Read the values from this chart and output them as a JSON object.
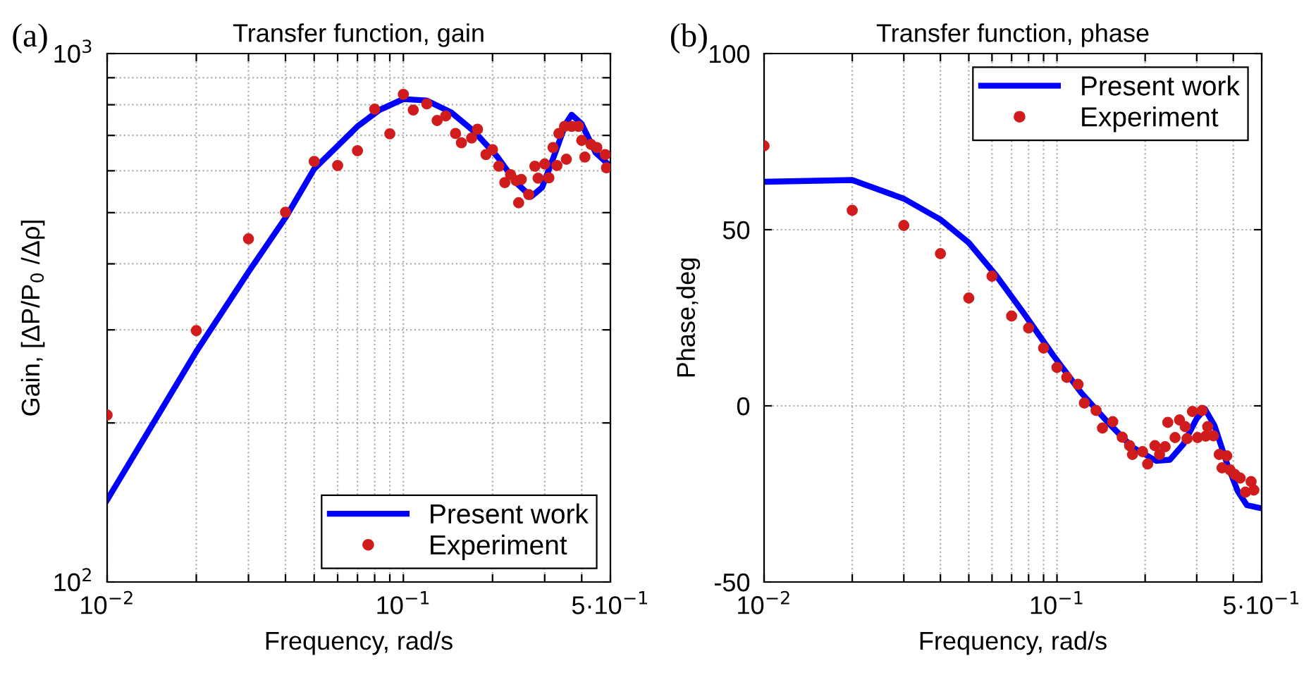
{
  "chart_data": [
    {
      "type": "line",
      "title": "Transfer function, gain",
      "xlabel": "Frequency, rad/s",
      "ylabel": "Gain, [ΔP/P$_{0}$ /Δρ]",
      "annotations": [
        "(a)"
      ],
      "log": "xy",
      "grid": true,
      "legend": "bottom right",
      "xlim": [
        0.01,
        0.5
      ],
      "ylim": [
        100,
        1000
      ],
      "xticks": [
        {
          "value": 0.01,
          "label": "10$^{−2}$"
        },
        {
          "value": 0.02,
          "label": null
        },
        {
          "value": 0.03,
          "label": null
        },
        {
          "value": 0.04,
          "label": null
        },
        {
          "value": 0.05,
          "label": null
        },
        {
          "value": 0.06,
          "label": null
        },
        {
          "value": 0.07,
          "label": null
        },
        {
          "value": 0.08,
          "label": null
        },
        {
          "value": 0.09,
          "label": null
        },
        {
          "value": 0.1,
          "label": "10$^{−1}$"
        },
        {
          "value": 0.2,
          "label": null
        },
        {
          "value": 0.3,
          "label": null
        },
        {
          "value": 0.4,
          "label": null
        },
        {
          "value": 0.5,
          "label": "5·10$^{−1}$"
        }
      ],
      "yticks": [
        {
          "value": 100,
          "label": "10$^{2}$"
        },
        {
          "value": 200,
          "label": null
        },
        {
          "value": 300,
          "label": null
        },
        {
          "value": 400,
          "label": null
        },
        {
          "value": 500,
          "label": null
        },
        {
          "value": 600,
          "label": null
        },
        {
          "value": 700,
          "label": null
        },
        {
          "value": 800,
          "label": null
        },
        {
          "value": 900,
          "label": null
        },
        {
          "value": 1000,
          "label": "10$^{3}$"
        }
      ],
      "series": [
        {
          "name": "Present work",
          "color": "#0000ff",
          "marker": "none",
          "line_style": "solid",
          "x": [
            0.01,
            0.02,
            0.03,
            0.04,
            0.05,
            0.07,
            0.083,
            0.1,
            0.12,
            0.145,
            0.173,
            0.208,
            0.24,
            0.27,
            0.294,
            0.324,
            0.353,
            0.37,
            0.4,
            0.445,
            0.5
          ],
          "values": [
            143,
            273,
            386,
            489,
            605,
            728,
            782,
            820,
            815,
            774,
            713,
            637,
            570,
            536,
            558,
            644,
            736,
            766,
            736,
            650,
            612
          ]
        },
        {
          "name": "Experiment",
          "type": "scatter",
          "color": "#d01c1c",
          "marker": "circle",
          "x": [
            0.01,
            0.02,
            0.03,
            0.04,
            0.05,
            0.06,
            0.07,
            0.08,
            0.09,
            0.1,
            0.108,
            0.12,
            0.13,
            0.139,
            0.15,
            0.157,
            0.17,
            0.178,
            0.19,
            0.2,
            0.21,
            0.22,
            0.23,
            0.24,
            0.245,
            0.25,
            0.265,
            0.278,
            0.285,
            0.3,
            0.31,
            0.32,
            0.33,
            0.335,
            0.35,
            0.355,
            0.37,
            0.39,
            0.4,
            0.41,
            0.43,
            0.45,
            0.48,
            0.485
          ],
          "values": [
            207,
            299,
            446,
            501,
            625,
            614,
            655,
            785,
            705,
            837,
            782,
            803,
            747,
            762,
            706,
            678,
            692,
            719,
            644,
            658,
            612,
            570,
            590,
            575,
            522,
            578,
            541,
            612,
            581,
            618,
            582,
            664,
            614,
            706,
            728,
            631,
            728,
            728,
            685,
            637,
            673,
            664,
            644,
            608
          ]
        }
      ]
    },
    {
      "type": "line",
      "title": "Transfer function, phase",
      "xlabel": "Frequency, rad/s",
      "ylabel": "Phase,deg",
      "annotations": [
        "(b)"
      ],
      "log": "x",
      "grid": true,
      "legend": "top right",
      "xlim": [
        0.01,
        0.5
      ],
      "ylim": [
        -50,
        100
      ],
      "xticks": [
        {
          "value": 0.01,
          "label": "10$^{−2}$"
        },
        {
          "value": 0.02,
          "label": null
        },
        {
          "value": 0.03,
          "label": null
        },
        {
          "value": 0.04,
          "label": null
        },
        {
          "value": 0.05,
          "label": null
        },
        {
          "value": 0.06,
          "label": null
        },
        {
          "value": 0.07,
          "label": null
        },
        {
          "value": 0.08,
          "label": null
        },
        {
          "value": 0.09,
          "label": null
        },
        {
          "value": 0.1,
          "label": "10$^{−1}$"
        },
        {
          "value": 0.2,
          "label": null
        },
        {
          "value": 0.3,
          "label": null
        },
        {
          "value": 0.4,
          "label": null
        },
        {
          "value": 0.5,
          "label": "5·10$^{−1}$"
        }
      ],
      "yticks": [
        -50,
        0,
        50,
        100
      ],
      "series": [
        {
          "name": "Present work",
          "color": "#0000ff",
          "marker": "none",
          "line_style": "solid",
          "x": [
            0.01,
            0.02,
            0.03,
            0.04,
            0.05,
            0.062,
            0.077,
            0.097,
            0.121,
            0.15,
            0.18,
            0.218,
            0.243,
            0.27,
            0.3,
            0.32,
            0.345,
            0.38,
            0.414,
            0.445,
            0.5
          ],
          "values": [
            63.6,
            64.1,
            58.8,
            52.9,
            46.3,
            37.0,
            26.3,
            14.4,
            3.7,
            -4.9,
            -11.6,
            -15.6,
            -15.3,
            -10.9,
            -3.6,
            -0.9,
            -5.6,
            -16.2,
            -24.2,
            -28.2,
            -29.1
          ]
        },
        {
          "name": "Experiment",
          "type": "scatter",
          "color": "#d01c1c",
          "marker": "circle",
          "x": [
            0.01,
            0.02,
            0.03,
            0.04,
            0.05,
            0.06,
            0.07,
            0.08,
            0.09,
            0.1,
            0.108,
            0.118,
            0.124,
            0.136,
            0.143,
            0.155,
            0.167,
            0.177,
            0.181,
            0.196,
            0.204,
            0.216,
            0.224,
            0.234,
            0.239,
            0.253,
            0.262,
            0.274,
            0.278,
            0.29,
            0.302,
            0.313,
            0.322,
            0.327,
            0.342,
            0.358,
            0.366,
            0.38,
            0.39,
            0.405,
            0.422,
            0.44,
            0.46,
            0.47
          ],
          "values": [
            73.8,
            55.5,
            51.2,
            43.2,
            30.6,
            36.8,
            25.5,
            22.1,
            16.4,
            10.9,
            8.1,
            6.1,
            0.8,
            -1.3,
            -6.3,
            -4.5,
            -8.9,
            -11.3,
            -13.8,
            -13.0,
            -16.5,
            -11.3,
            -13.8,
            -11.6,
            -4.7,
            -9.0,
            -4.0,
            -5.9,
            -9.3,
            -1.6,
            -9.0,
            -1.3,
            -8.6,
            -5.9,
            -8.5,
            -13.8,
            -17.6,
            -14.2,
            -18.2,
            -19.5,
            -20.5,
            -24.5,
            -21.5,
            -23.9
          ]
        }
      ]
    }
  ]
}
